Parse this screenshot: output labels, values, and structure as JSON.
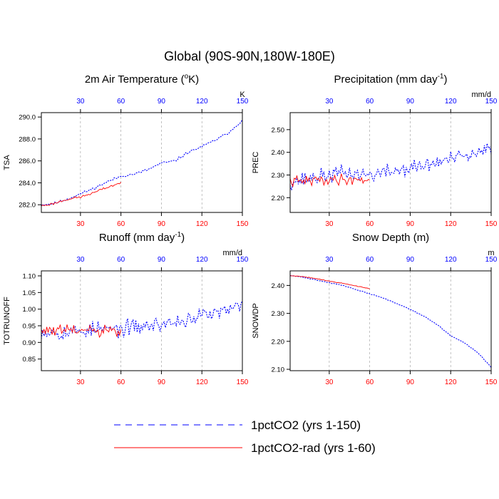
{
  "page": {
    "title": "Global (90S-90N,180W-180E)"
  },
  "legend": {
    "entries": [
      {
        "label": "1pctCO2 (yrs 1-150)",
        "color": "#0000ff",
        "dash": true
      },
      {
        "label": "1pctCO2-rad (yrs 1-60)",
        "color": "#ff0000",
        "dash": false
      }
    ]
  },
  "colors": {
    "blue_series": "#0000ff",
    "red_series": "#ff0000",
    "top_ticks": "#0000ff",
    "bottom_ticks": "#ff0000",
    "grid": "#999999"
  },
  "chart_data": [
    {
      "type": "line",
      "title": "2m Air Temperature (",
      "title_sup": "o",
      "title_tail": "K)",
      "ylabel": "TSA",
      "unit": "K",
      "ylim": [
        281.3,
        290.4
      ],
      "xlim": [
        1,
        150
      ],
      "yticks": [
        282.0,
        284.0,
        286.0,
        288.0,
        290.0
      ],
      "ytick_labels": [
        "282.0",
        "284.0",
        "286.0",
        "288.0",
        "290.0"
      ],
      "xticks": [
        30,
        60,
        90,
        120,
        150
      ],
      "xtick_labels": [
        "30",
        "60",
        "90",
        "120",
        "150"
      ],
      "grid_x": true,
      "series": [
        {
          "name": "1pctCO2 (yrs 1-150)",
          "anchors": [
            [
              1,
              282.0
            ],
            [
              10,
              282.1
            ],
            [
              20,
              282.5
            ],
            [
              30,
              283.0
            ],
            [
              40,
              283.5
            ],
            [
              50,
              284.1
            ],
            [
              60,
              284.6
            ],
            [
              70,
              284.8
            ],
            [
              80,
              285.2
            ],
            [
              90,
              285.8
            ],
            [
              100,
              286.0
            ],
            [
              110,
              286.8
            ],
            [
              120,
              287.3
            ],
            [
              130,
              287.9
            ],
            [
              140,
              288.6
            ],
            [
              150,
              289.7
            ]
          ],
          "noise": 0.17,
          "seed": 11
        },
        {
          "name": "1pctCO2-rad (yrs 1-60)",
          "anchors": [
            [
              1,
              281.9
            ],
            [
              10,
              282.1
            ],
            [
              20,
              282.5
            ],
            [
              30,
              282.7
            ],
            [
              40,
              283.1
            ],
            [
              50,
              283.6
            ],
            [
              60,
              284.0
            ]
          ],
          "noise": 0.17,
          "seed": 23
        }
      ]
    },
    {
      "type": "line",
      "title": "Precipitation (mm day",
      "title_sup": "-1",
      "title_tail": ")",
      "ylabel": "PREC",
      "unit": "mm/d",
      "ylim": [
        2.135,
        2.575
      ],
      "xlim": [
        1,
        150
      ],
      "yticks": [
        2.2,
        2.3,
        2.4,
        2.5
      ],
      "ytick_labels": [
        "2.20",
        "2.30",
        "2.40",
        "2.50"
      ],
      "xticks": [
        30,
        60,
        90,
        120,
        150
      ],
      "xtick_labels": [
        "30",
        "60",
        "90",
        "120",
        "150"
      ],
      "grid_x": true,
      "series": [
        {
          "name": "1pctCO2 (yrs 1-150)",
          "anchors": [
            [
              1,
              2.27
            ],
            [
              20,
              2.29
            ],
            [
              40,
              2.31
            ],
            [
              60,
              2.3
            ],
            [
              80,
              2.32
            ],
            [
              100,
              2.34
            ],
            [
              120,
              2.37
            ],
            [
              140,
              2.39
            ],
            [
              150,
              2.42
            ]
          ],
          "noise": 0.05,
          "seed": 37
        },
        {
          "name": "1pctCO2-rad (yrs 1-60)",
          "anchors": [
            [
              1,
              2.27
            ],
            [
              30,
              2.28
            ],
            [
              60,
              2.28
            ]
          ],
          "noise": 0.035,
          "seed": 41
        }
      ]
    },
    {
      "type": "line",
      "title": "Runoff (mm day",
      "title_sup": "-1",
      "title_tail": ")",
      "ylabel": "TOTRUNOFF",
      "unit": "mm/d",
      "ylim": [
        0.815,
        1.115
      ],
      "xlim": [
        1,
        150
      ],
      "yticks": [
        0.85,
        0.9,
        0.95,
        1.0,
        1.05,
        1.1
      ],
      "ytick_labels": [
        "0.85",
        "0.90",
        "0.95",
        "1.00",
        "1.05",
        "1.10"
      ],
      "xticks": [
        30,
        60,
        90,
        120,
        150
      ],
      "xtick_labels": [
        "30",
        "60",
        "90",
        "120",
        "150"
      ],
      "grid_x": true,
      "series": [
        {
          "name": "1pctCO2 (yrs 1-150)",
          "anchors": [
            [
              1,
              0.935
            ],
            [
              20,
              0.93
            ],
            [
              40,
              0.94
            ],
            [
              60,
              0.94
            ],
            [
              80,
              0.95
            ],
            [
              100,
              0.96
            ],
            [
              120,
              0.98
            ],
            [
              140,
              0.995
            ],
            [
              150,
              1.01
            ]
          ],
          "noise": 0.035,
          "seed": 53
        },
        {
          "name": "1pctCO2-rad (yrs 1-60)",
          "anchors": [
            [
              1,
              0.935
            ],
            [
              30,
              0.935
            ],
            [
              60,
              0.93
            ]
          ],
          "noise": 0.03,
          "seed": 61
        }
      ]
    },
    {
      "type": "line",
      "title": "Snow Depth (m)",
      "title_sup": "",
      "title_tail": "",
      "ylabel": "SNOWDP",
      "unit": "m",
      "ylim": [
        2.095,
        2.452
      ],
      "xlim": [
        1,
        150
      ],
      "yticks": [
        2.1,
        2.2,
        2.3,
        2.4
      ],
      "ytick_labels": [
        "2.10",
        "2.20",
        "2.30",
        "2.40"
      ],
      "xticks": [
        30,
        60,
        90,
        120,
        150
      ],
      "xtick_labels": [
        "30",
        "60",
        "90",
        "120",
        "150"
      ],
      "grid_x": true,
      "series": [
        {
          "name": "1pctCO2 (yrs 1-150)",
          "anchors": [
            [
              1,
              2.435
            ],
            [
              10,
              2.43
            ],
            [
              20,
              2.42
            ],
            [
              30,
              2.41
            ],
            [
              40,
              2.4
            ],
            [
              50,
              2.385
            ],
            [
              60,
              2.37
            ],
            [
              70,
              2.355
            ],
            [
              80,
              2.335
            ],
            [
              90,
              2.315
            ],
            [
              100,
              2.29
            ],
            [
              110,
              2.26
            ],
            [
              120,
              2.22
            ],
            [
              130,
              2.195
            ],
            [
              140,
              2.16
            ],
            [
              150,
              2.108
            ]
          ],
          "noise": 0.002,
          "seed": 71
        },
        {
          "name": "1pctCO2-rad (yrs 1-60)",
          "anchors": [
            [
              1,
              2.435
            ],
            [
              10,
              2.432
            ],
            [
              20,
              2.425
            ],
            [
              30,
              2.415
            ],
            [
              40,
              2.408
            ],
            [
              50,
              2.398
            ],
            [
              60,
              2.388
            ]
          ],
          "noise": 0.002,
          "seed": 79
        }
      ]
    }
  ]
}
